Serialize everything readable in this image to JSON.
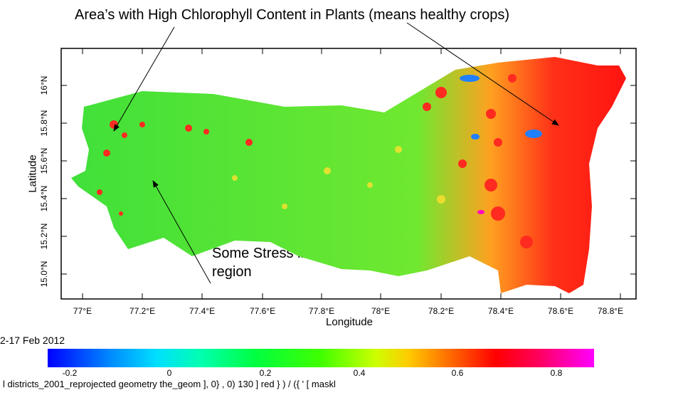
{
  "annotations": {
    "top": "Area’s with High Chlorophyll Content in Plants (means healthy crops)",
    "middle": "Some Stress in most of the region"
  },
  "map": {
    "x_axis_label": "Longitude",
    "y_axis_label": "Latitude",
    "x_ticks": [
      "77°E",
      "77.2°E",
      "77.4°E",
      "77.6°E",
      "77.8°E",
      "78°E",
      "78.2°E",
      "78.4°E",
      "78.6°E",
      "78.8°E"
    ],
    "y_ticks": [
      "16°N",
      "15.8°N",
      "15.6°N",
      "15.4°N",
      "15.2°N",
      "15.0°N"
    ],
    "x_range": [
      76.95,
      78.95
    ],
    "y_range": [
      14.9,
      16.2
    ],
    "date_label": "2-17 Feb 2012"
  },
  "colorbar": {
    "ticks": [
      "-0.2",
      "0",
      "0.2",
      "0.4",
      "0.6",
      "0.8"
    ],
    "range": [
      -0.3,
      0.9
    ],
    "colors": [
      "#0000ff",
      "#00e0ff",
      "#00ff40",
      "#ccff00",
      "#ff6600",
      "#ff0000",
      "#ff00ff"
    ]
  },
  "footer_formula": "l districts_2001_reprojected geometry the_geom ], 0}    , 0) 130 ] red } ) / ({ ' [ maskl",
  "colors": {
    "frame": "#000000",
    "base_green": "#3fe03a",
    "healthy_red": "#ff2020",
    "water_blue": "#2080ff"
  }
}
